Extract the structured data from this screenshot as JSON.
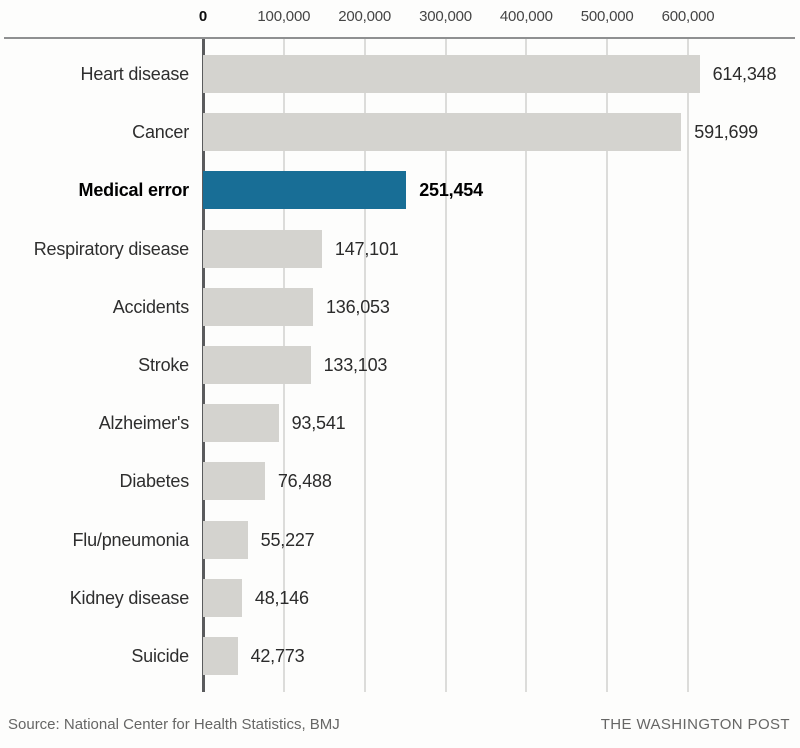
{
  "chart_data": {
    "type": "bar",
    "orientation": "horizontal",
    "categories": [
      "Heart disease",
      "Cancer",
      "Medical error",
      "Respiratory disease",
      "Accidents",
      "Stroke",
      "Alzheimer's",
      "Diabetes",
      "Flu/pneumonia",
      "Kidney disease",
      "Suicide"
    ],
    "values": [
      614348,
      591699,
      251454,
      147101,
      136053,
      133103,
      93541,
      76488,
      55227,
      48146,
      42773
    ],
    "value_labels": [
      "614,348",
      "591,699",
      "251,454",
      "147,101",
      "136,053",
      "133,103",
      "93,541",
      "76,488",
      "55,227",
      "48,146",
      "42,773"
    ],
    "highlight_index": 2,
    "highlight_category": "Medical error",
    "x_ticks": [
      "0",
      "100,000",
      "200,000",
      "300,000",
      "400,000",
      "500,000",
      "600,000"
    ],
    "x_tick_values": [
      0,
      100000,
      200000,
      300000,
      400000,
      500000,
      600000
    ],
    "xlim": [
      0,
      600000
    ],
    "grid": true,
    "legend": false,
    "bar_color": "#d4d3cf",
    "highlight_color": "#186e96"
  },
  "footer": {
    "source": "Source: National Center for Health Statistics, BMJ",
    "credit": "THE WASHINGTON POST"
  }
}
